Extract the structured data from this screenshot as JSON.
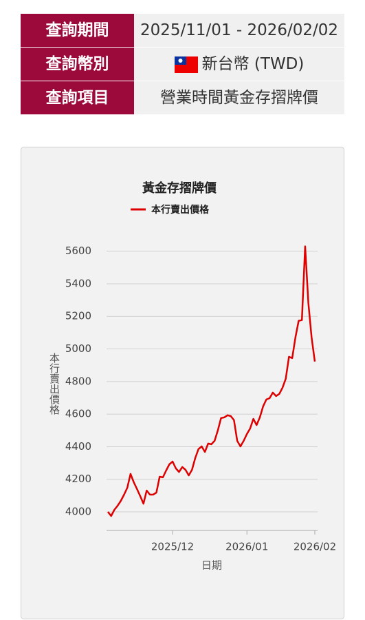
{
  "table": {
    "rows": [
      [
        "查詢期間",
        "2025/11/01 - 2026/02/02"
      ],
      [
        "查詢幣別",
        "新台幣 (TWD)"
      ],
      [
        "查詢項目",
        "營業時間黃金存摺牌價"
      ]
    ]
  },
  "chart_data": {
    "type": "line",
    "title": "黃金存摺牌價",
    "x_label": "日期",
    "y_label": "本行賣出價格",
    "categories": [
      null,
      null,
      null,
      null,
      null,
      null,
      null,
      null,
      null,
      null,
      null,
      null,
      null,
      null,
      null,
      null,
      null,
      null,
      null,
      null,
      "2025/12",
      null,
      null,
      null,
      null,
      null,
      null,
      null,
      null,
      null,
      null,
      null,
      null,
      null,
      null,
      null,
      null,
      null,
      null,
      null,
      null,
      null,
      null,
      "2026/01",
      null,
      null,
      null,
      null,
      null,
      null,
      null,
      null,
      null,
      null,
      null,
      null,
      null,
      null,
      null,
      null,
      null,
      null,
      null,
      null,
      "2026/02"
    ],
    "series": [
      {
        "name": "本行賣出價格",
        "color": "#dd0000",
        "values": [
          4000,
          3975,
          4013,
          4038,
          4068,
          4106,
          4148,
          4233,
          4182,
          4140,
          4097,
          4050,
          4131,
          4106,
          4106,
          4118,
          4216,
          4212,
          4254,
          4292,
          4309,
          4267,
          4245,
          4275,
          4258,
          4224,
          4258,
          4330,
          4385,
          4402,
          4368,
          4419,
          4415,
          4436,
          4500,
          4576,
          4580,
          4593,
          4588,
          4563,
          4436,
          4402,
          4436,
          4478,
          4512,
          4571,
          4533,
          4580,
          4648,
          4690,
          4698,
          4732,
          4711,
          4724,
          4762,
          4817,
          4952,
          4944,
          5071,
          5173,
          5177,
          5630,
          5283,
          5071,
          4923
        ]
      }
    ],
    "ylim": [
      3886,
      5700
    ],
    "yticks": [
      4000,
      4200,
      4400,
      4600,
      4800,
      5000,
      5200,
      5400,
      5600
    ],
    "grid": true
  }
}
